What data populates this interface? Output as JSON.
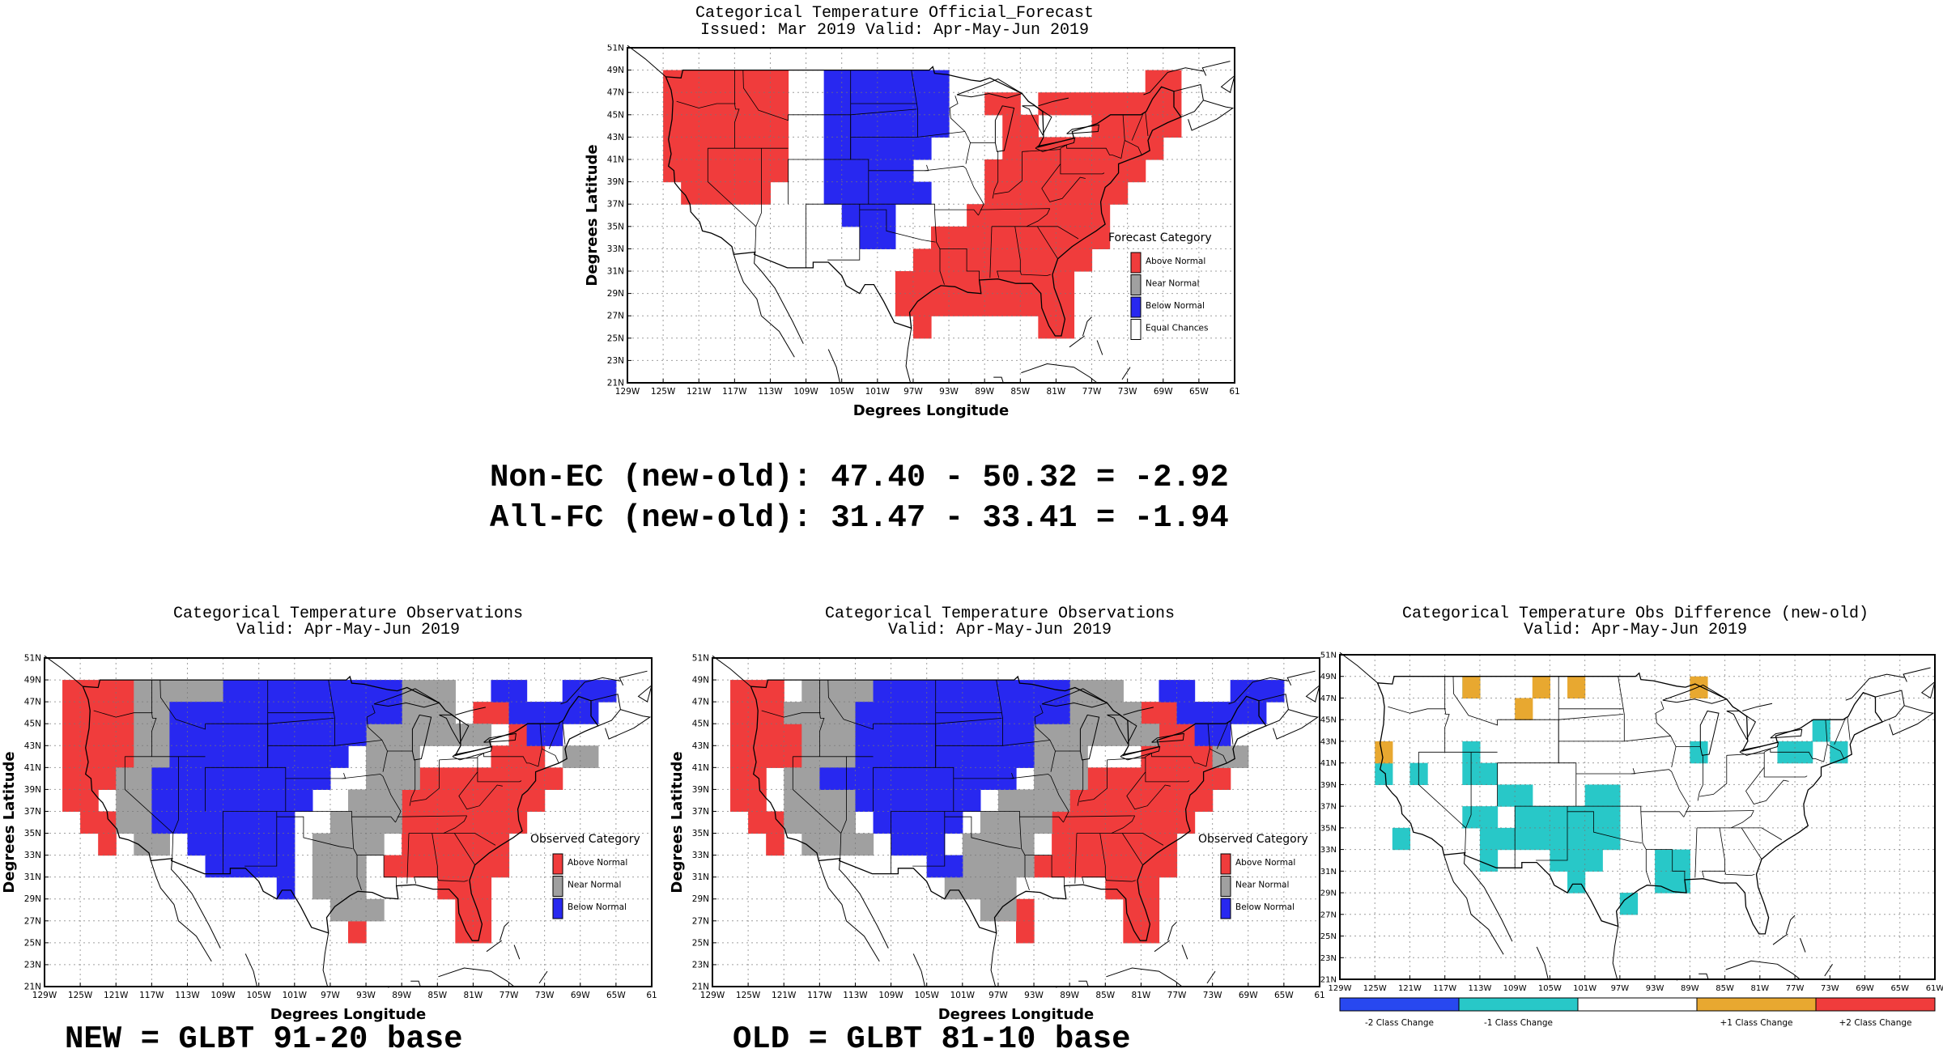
{
  "panels": [
    {
      "id": "forecast",
      "title": "Categorical Temperature Official_Forecast",
      "subtitle": "Issued: Mar 2019 Valid: Apr-May-Jun 2019",
      "ylabel": "Degrees Latitude",
      "xlabel": "Degrees Longitude",
      "legend_title": "Forecast Category",
      "legend": [
        {
          "label": "Above Normal",
          "color": "#f03c3c"
        },
        {
          "label": "Near Normal",
          "color": "#a0a0a0"
        },
        {
          "label": "Below Normal",
          "color": "#2828f0"
        },
        {
          "label": "Equal Chances",
          "color": "#ffffff"
        }
      ]
    },
    {
      "id": "obs_new",
      "title": "Categorical Temperature Observations",
      "subtitle": "Valid: Apr-May-Jun 2019",
      "ylabel": "Degrees Latitude",
      "xlabel": "Degrees Longitude",
      "legend_title": "Observed Category",
      "legend": [
        {
          "label": "Above Normal",
          "color": "#f03c3c"
        },
        {
          "label": "Near Normal",
          "color": "#a0a0a0"
        },
        {
          "label": "Below Normal",
          "color": "#2828f0"
        }
      ]
    },
    {
      "id": "obs_old",
      "title": "Categorical Temperature Observations",
      "subtitle": "Valid: Apr-May-Jun 2019",
      "ylabel": "Degrees Latitude",
      "xlabel": "Degrees Longitude",
      "legend_title": "Observed Category",
      "legend": [
        {
          "label": "Above Normal",
          "color": "#f03c3c"
        },
        {
          "label": "Near Normal",
          "color": "#a0a0a0"
        },
        {
          "label": "Below Normal",
          "color": "#2828f0"
        }
      ]
    },
    {
      "id": "diff",
      "title": "Categorical Temperature Obs Difference (new-old)",
      "subtitle": "Valid: Apr-May-Jun 2019",
      "ylabel": "",
      "xlabel": "",
      "legend_title": "",
      "legend": []
    }
  ],
  "lat_ticks": [
    "21N",
    "23N",
    "25N",
    "27N",
    "29N",
    "31N",
    "33N",
    "35N",
    "37N",
    "39N",
    "41N",
    "43N",
    "45N",
    "47N",
    "49N",
    "51N"
  ],
  "lon_ticks": [
    "129W",
    "125W",
    "121W",
    "117W",
    "113W",
    "109W",
    "105W",
    "101W",
    "97W",
    "93W",
    "89W",
    "85W",
    "81W",
    "77W",
    "73W",
    "69W",
    "65W",
    "61"
  ],
  "diff_lon_ticks": [
    "129W",
    "125W",
    "121W",
    "117W",
    "113W",
    "109W",
    "105W",
    "101W",
    "97W",
    "93W",
    "89W",
    "85W",
    "81W",
    "77W",
    "73W",
    "69W",
    "65W",
    "61W"
  ],
  "scores": {
    "line1": "Non-EC (new-old): 47.40 - 50.32 = -2.92",
    "line2": "All-FC (new-old): 31.47 - 33.41 = -1.94"
  },
  "base_new": "NEW = GLBT 91-20 base",
  "base_old": "OLD = GLBT 81-10 base",
  "diff_colorbar": [
    {
      "label": "-2 Class Change",
      "color": "#2848f0"
    },
    {
      "label": "-1 Class Change",
      "color": "#28c8c8"
    },
    {
      "label": "",
      "color": "#ffffff"
    },
    {
      "label": "+1 Class Change",
      "color": "#e8a830"
    },
    {
      "label": "+2 Class Change",
      "color": "#f03c3c"
    }
  ],
  "colors": {
    "above": "#f03c3c",
    "near": "#a0a0a0",
    "below": "#2828f0",
    "ec": "#ffffff",
    "minus1": "#28c8c8",
    "plus1": "#e8a830"
  }
}
